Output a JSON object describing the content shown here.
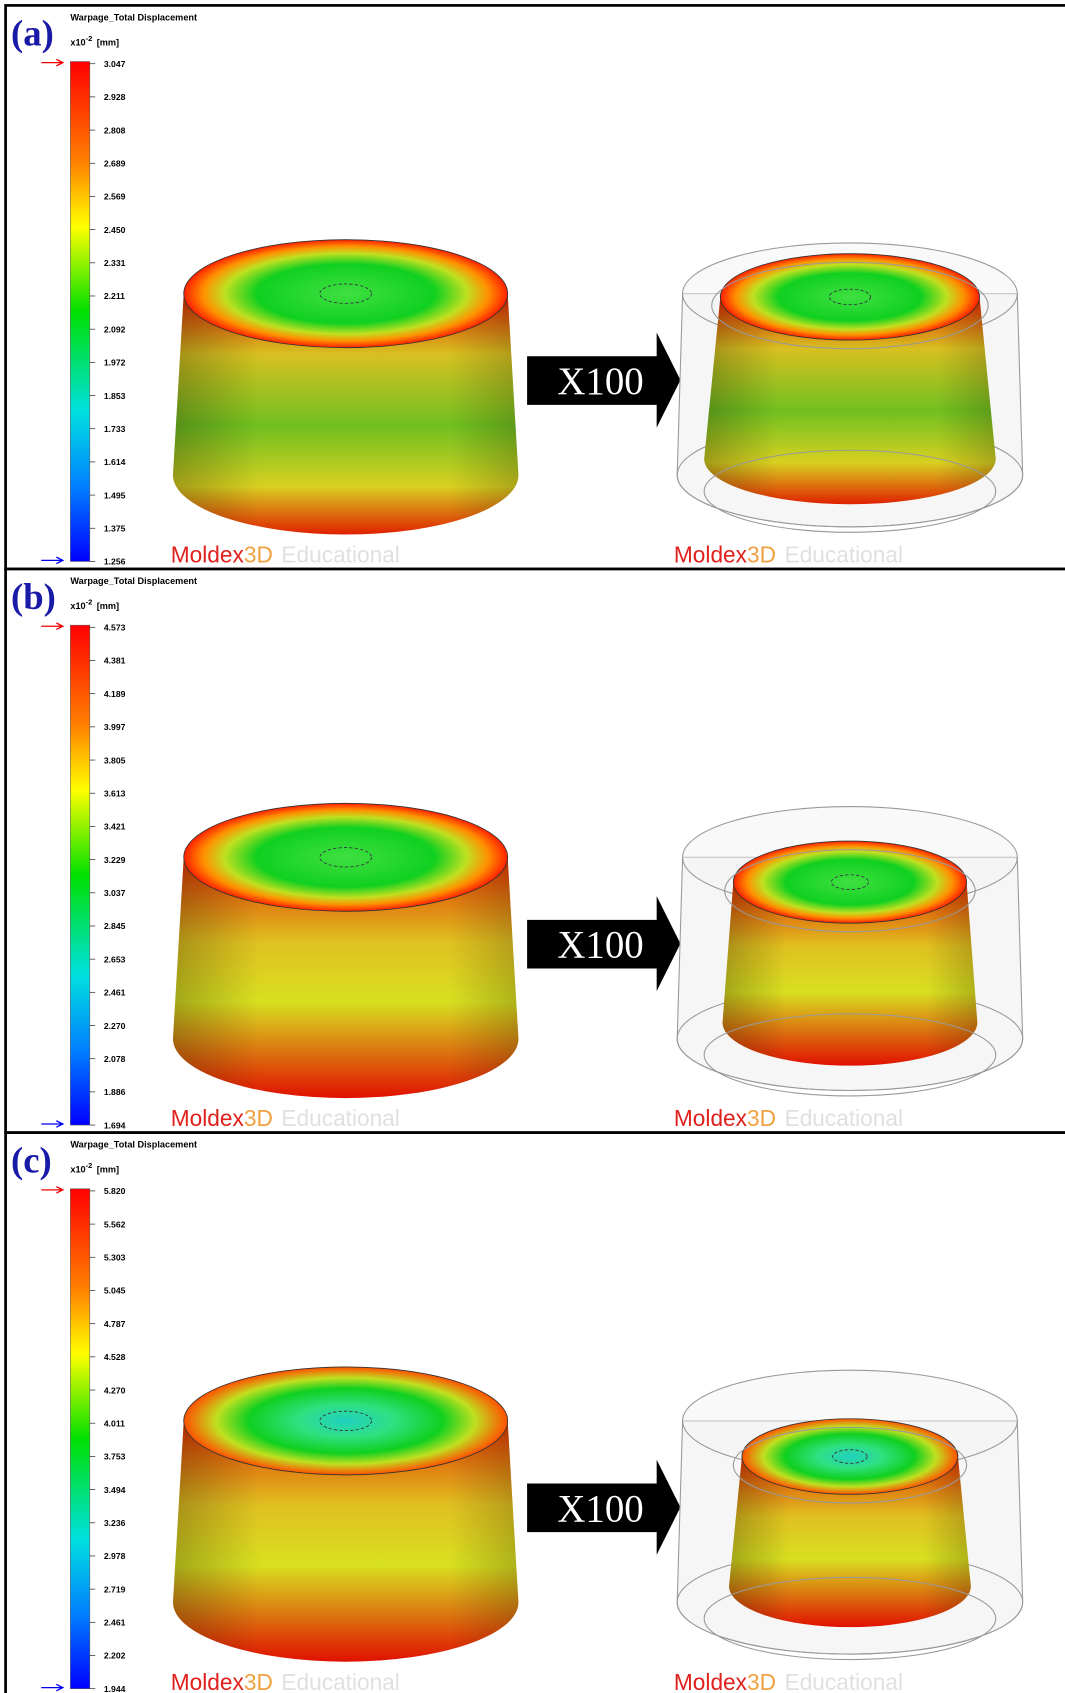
{
  "panels": [
    {
      "label": "(a)",
      "title": "Warpage_Total Displacement",
      "scale_prefix": "x10",
      "scale_exponent": "-2",
      "unit": "[mm]",
      "legend_ticks": [
        "3.047",
        "2.928",
        "2.808",
        "2.689",
        "2.569",
        "2.450",
        "2.331",
        "2.211",
        "2.092",
        "1.972",
        "1.853",
        "1.733",
        "1.614",
        "1.495",
        "1.375",
        "1.256"
      ],
      "arrow_text": "X100",
      "watermarks": [
        {
          "brand": "Moldex",
          "brand_suffix": "3D",
          "edition": "Educational"
        },
        {
          "brand": "Moldex",
          "brand_suffix": "3D",
          "edition": "Educational"
        }
      ]
    },
    {
      "label": "(b)",
      "title": "Warpage_Total Displacement",
      "scale_prefix": "x10",
      "scale_exponent": "-2",
      "unit": "[mm]",
      "legend_ticks": [
        "4.573",
        "4.381",
        "4.189",
        "3.997",
        "3.805",
        "3.613",
        "3.421",
        "3.229",
        "3.037",
        "2.845",
        "2.653",
        "2.461",
        "2.270",
        "2.078",
        "1.886",
        "1.694"
      ],
      "arrow_text": "X100",
      "watermarks": [
        {
          "brand": "Moldex",
          "brand_suffix": "3D",
          "edition": "Educational"
        },
        {
          "brand": "Moldex",
          "brand_suffix": "3D",
          "edition": "Educational"
        }
      ]
    },
    {
      "label": "(c)",
      "title": "Warpage_Total Displacement",
      "scale_prefix": "x10",
      "scale_exponent": "-2",
      "unit": "[mm]",
      "legend_ticks": [
        "5.820",
        "5.562",
        "5.303",
        "5.045",
        "4.787",
        "4.528",
        "4.270",
        "4.011",
        "3.753",
        "3.494",
        "3.236",
        "2.978",
        "2.719",
        "2.461",
        "2.202",
        "1.944"
      ],
      "arrow_text": "X100",
      "watermarks": [
        {
          "brand": "Moldex",
          "brand_suffix": "3D",
          "edition": "Educational"
        },
        {
          "brand": "Moldex",
          "brand_suffix": "3D",
          "edition": "Educational"
        }
      ]
    }
  ]
}
